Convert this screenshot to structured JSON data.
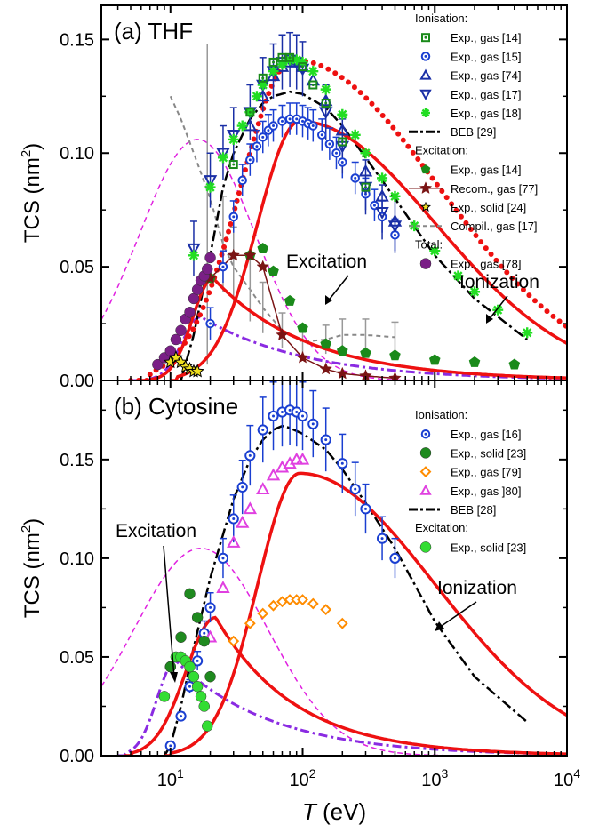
{
  "figure": {
    "xlabel_italic": "T",
    "xlabel_unit": " (eV)",
    "ylabel": "TCS (nm",
    "ylabel_sup": "2",
    "ylabel_close": ")",
    "x_ticks": [
      {
        "base": "10",
        "exp": "1",
        "v": 10
      },
      {
        "base": "10",
        "exp": "2",
        "v": 100
      },
      {
        "base": "10",
        "exp": "3",
        "v": 1000
      },
      {
        "base": "10",
        "exp": "4",
        "v": 10000
      }
    ],
    "xlim": [
      3,
      10000
    ]
  },
  "chart_data": [
    {
      "type": "scatter",
      "title": "(a) THF",
      "ylim": [
        0,
        0.165
      ],
      "yticks": [
        "0.00",
        "0.05",
        "0.10",
        "0.15"
      ],
      "annotations": [
        {
          "text": "Excitation"
        },
        {
          "text": "Ionization"
        }
      ],
      "legend": [
        {
          "type": "header",
          "text": "Ionisation:"
        },
        {
          "text": "Exp., gas [14]",
          "sym": "sqdot",
          "color": "#1a8a1a"
        },
        {
          "text": "Exp., gas [15]",
          "sym": "circdot",
          "color": "#1a3fd1"
        },
        {
          "text": "Exp., gas [74]",
          "sym": "tri",
          "color": "#1a2fa6"
        },
        {
          "text": "Exp., gas [17]",
          "sym": "tridown",
          "color": "#1a2fa6"
        },
        {
          "text": "Exp., gas [18]",
          "sym": "star",
          "color": "#22dd22"
        },
        {
          "text": "BEB [29]",
          "sym": "dashdot",
          "color": "#000000"
        },
        {
          "type": "header",
          "text": "Excitation:"
        },
        {
          "text": "Exp., gas [14]",
          "sym": "pent",
          "color": "#1a8a1a"
        },
        {
          "text": "Recom., gas [77]",
          "sym": "starline",
          "color": "#7a1414"
        },
        {
          "text": "Exp., solid [24]",
          "sym": "ystar",
          "color": "#f0e020"
        },
        {
          "text": "Compil., gas [17]",
          "sym": "greydash",
          "color": "#888888"
        },
        {
          "type": "header",
          "text": "Total:"
        },
        {
          "text": "Exp., gas [78]",
          "sym": "purpleball",
          "color": "#7a1f86"
        }
      ],
      "series": [
        {
          "name": "Exp., gas [14]",
          "group": "ionisation",
          "x": [
            30,
            40,
            50,
            60,
            70,
            80,
            100,
            120,
            150,
            200,
            300
          ],
          "y": [
            0.095,
            0.118,
            0.133,
            0.14,
            0.142,
            0.142,
            0.138,
            0.13,
            0.122,
            0.105,
            0.085
          ]
        },
        {
          "name": "Exp., gas [15]",
          "group": "ionisation",
          "x": [
            20,
            25,
            30,
            35,
            40,
            45,
            50,
            55,
            60,
            70,
            80,
            90,
            100,
            110,
            120,
            140,
            160,
            180,
            200,
            250,
            300,
            350,
            400,
            500
          ],
          "y": [
            0.025,
            0.05,
            0.072,
            0.088,
            0.097,
            0.103,
            0.107,
            0.11,
            0.112,
            0.114,
            0.115,
            0.115,
            0.114,
            0.113,
            0.112,
            0.108,
            0.104,
            0.1,
            0.096,
            0.089,
            0.082,
            0.077,
            0.072,
            0.064
          ]
        },
        {
          "name": "Exp., gas [74]",
          "group": "ionisation",
          "x": [
            40,
            50,
            60,
            70,
            80,
            90,
            100,
            120,
            150,
            200,
            300,
            400,
            500
          ],
          "y": [
            0.112,
            0.125,
            0.134,
            0.138,
            0.14,
            0.14,
            0.138,
            0.132,
            0.123,
            0.11,
            0.092,
            0.081,
            0.07
          ]
        },
        {
          "name": "Exp., gas [17]",
          "group": "ionisation",
          "x": [
            15,
            20,
            25,
            30,
            40,
            50,
            60,
            70,
            80,
            90,
            100,
            150,
            200,
            300,
            400,
            500
          ],
          "y": [
            0.058,
            0.088,
            0.1,
            0.108,
            0.118,
            0.13,
            0.136,
            0.14,
            0.141,
            0.14,
            0.137,
            0.118,
            0.103,
            0.085,
            0.074,
            0.068
          ]
        },
        {
          "name": "Exp., gas [18]",
          "group": "ionisation",
          "x": [
            15,
            20,
            25,
            30,
            35,
            40,
            45,
            50,
            60,
            70,
            80,
            90,
            100,
            120,
            150,
            200,
            250,
            300,
            400,
            500,
            700,
            1000,
            1500,
            2000,
            3000,
            5000
          ],
          "y": [
            0.055,
            0.085,
            0.098,
            0.106,
            0.112,
            0.118,
            0.125,
            0.13,
            0.136,
            0.139,
            0.141,
            0.141,
            0.14,
            0.136,
            0.128,
            0.117,
            0.108,
            0.1,
            0.089,
            0.081,
            0.068,
            0.057,
            0.046,
            0.039,
            0.031,
            0.021
          ]
        },
        {
          "name": "BEB [29]",
          "group": "ionisation",
          "x": [
            12,
            15,
            20,
            25,
            30,
            40,
            50,
            60,
            80,
            100,
            150,
            200,
            300,
            500,
            1000,
            2000,
            5000
          ],
          "y": [
            0.0,
            0.02,
            0.055,
            0.085,
            0.1,
            0.115,
            0.122,
            0.125,
            0.127,
            0.126,
            0.12,
            0.112,
            0.098,
            0.08,
            0.055,
            0.036,
            0.018
          ]
        },
        {
          "name": "Exp., gas [14]",
          "group": "excitation",
          "x": [
            20,
            40,
            50,
            60,
            80,
            100,
            150,
            200,
            300,
            500,
            1000,
            2000,
            4000
          ],
          "y": [
            0.045,
            0.055,
            0.058,
            0.048,
            0.035,
            0.023,
            0.016,
            0.013,
            0.012,
            0.011,
            0.009,
            0.008,
            0.007
          ]
        },
        {
          "name": "Recom., gas [77]",
          "group": "excitation",
          "x": [
            20,
            30,
            40,
            50,
            70,
            100,
            150,
            200,
            300,
            500
          ],
          "y": [
            0.045,
            0.055,
            0.055,
            0.05,
            0.02,
            0.01,
            0.005,
            0.003,
            0.002,
            0.001
          ]
        },
        {
          "name": "Exp., solid [24]",
          "group": "excitation",
          "x": [
            10,
            11,
            12,
            13,
            14,
            15,
            16
          ],
          "y": [
            0.008,
            0.01,
            0.008,
            0.006,
            0.005,
            0.004,
            0.004
          ]
        },
        {
          "name": "Compil., gas [17]",
          "group": "excitation",
          "x": [
            10,
            12,
            15,
            20,
            25,
            30,
            40,
            50,
            70,
            100,
            150,
            200,
            300,
            500
          ],
          "y": [
            0.125,
            0.115,
            0.1,
            0.08,
            0.06,
            0.05,
            0.04,
            0.032,
            0.022,
            0.017,
            0.018,
            0.02,
            0.02,
            0.019
          ]
        },
        {
          "name": "Exp., gas [78]",
          "group": "total",
          "x": [
            8,
            9,
            10,
            11,
            12,
            13,
            14,
            15,
            16,
            17,
            18,
            19,
            20
          ],
          "y": [
            0.007,
            0.01,
            0.013,
            0.018,
            0.022,
            0.027,
            0.03,
            0.036,
            0.04,
            0.044,
            0.046,
            0.049,
            0.054
          ]
        }
      ]
    },
    {
      "type": "scatter",
      "title": "(b) Cytosine",
      "ylim": [
        0,
        0.19
      ],
      "yticks": [
        "0.00",
        "0.05",
        "0.10",
        "0.15"
      ],
      "annotations": [
        {
          "text": "Excitation"
        },
        {
          "text": "Ionization"
        }
      ],
      "legend": [
        {
          "type": "header",
          "text": "Ionisation:"
        },
        {
          "text": "Exp., gas [16]",
          "sym": "circdot",
          "color": "#1a3fd1"
        },
        {
          "text": "Exp., solid [23]",
          "sym": "greenball",
          "color": "#1f8a1f"
        },
        {
          "text": "Exp., gas [79]",
          "sym": "diamond",
          "color": "#ff8c00"
        },
        {
          "text": "Exp., gas ]80]",
          "sym": "tri",
          "color": "#e040e0"
        },
        {
          "text": "BEB [28]",
          "sym": "dashdot",
          "color": "#000000"
        },
        {
          "type": "header",
          "text": "Excitation:"
        },
        {
          "text": "Exp., solid [23]",
          "sym": "limeball",
          "color": "#33dd33"
        }
      ],
      "series": [
        {
          "name": "Exp., gas [16]",
          "group": "ionisation",
          "x": [
            10,
            12,
            14,
            16,
            18,
            20,
            25,
            30,
            35,
            40,
            50,
            60,
            70,
            80,
            90,
            100,
            120,
            150,
            200,
            250,
            300,
            400,
            500
          ],
          "y": [
            0.005,
            0.02,
            0.035,
            0.048,
            0.062,
            0.075,
            0.1,
            0.12,
            0.136,
            0.152,
            0.165,
            0.172,
            0.174,
            0.175,
            0.174,
            0.172,
            0.168,
            0.16,
            0.148,
            0.135,
            0.125,
            0.11,
            0.1
          ]
        },
        {
          "name": "Exp., solid [23]",
          "group": "ionisation",
          "x": [
            10,
            12,
            14,
            16,
            18,
            20
          ],
          "y": [
            0.045,
            0.06,
            0.082,
            0.07,
            0.058,
            0.04
          ]
        },
        {
          "name": "Exp., gas [79]",
          "group": "ionisation",
          "x": [
            20,
            30,
            40,
            50,
            60,
            70,
            80,
            90,
            100,
            120,
            150,
            200
          ],
          "y": [
            0.04,
            0.058,
            0.067,
            0.072,
            0.076,
            0.078,
            0.079,
            0.079,
            0.079,
            0.077,
            0.074,
            0.067
          ]
        },
        {
          "name": "Exp., gas ]80]",
          "group": "ionisation",
          "x": [
            20,
            25,
            30,
            35,
            40,
            50,
            60,
            70,
            80,
            90,
            100
          ],
          "y": [
            0.06,
            0.085,
            0.108,
            0.118,
            0.125,
            0.135,
            0.142,
            0.146,
            0.148,
            0.15,
            0.15
          ]
        },
        {
          "name": "BEB [28]",
          "group": "ionisation",
          "x": [
            9,
            10,
            12,
            15,
            20,
            30,
            40,
            50,
            60,
            70,
            80,
            100,
            150,
            200,
            300,
            500,
            1000,
            2000,
            5000
          ],
          "y": [
            0.0,
            0.005,
            0.025,
            0.055,
            0.09,
            0.13,
            0.15,
            0.16,
            0.165,
            0.167,
            0.166,
            0.163,
            0.155,
            0.145,
            0.128,
            0.105,
            0.068,
            0.04,
            0.017
          ]
        },
        {
          "name": "Exp., solid [23]",
          "group": "excitation",
          "x": [
            9,
            10,
            11,
            12,
            13,
            14,
            15,
            16,
            17,
            18,
            19
          ],
          "y": [
            0.03,
            0.045,
            0.05,
            0.05,
            0.048,
            0.045,
            0.04,
            0.035,
            0.03,
            0.025,
            0.015
          ]
        }
      ]
    }
  ]
}
